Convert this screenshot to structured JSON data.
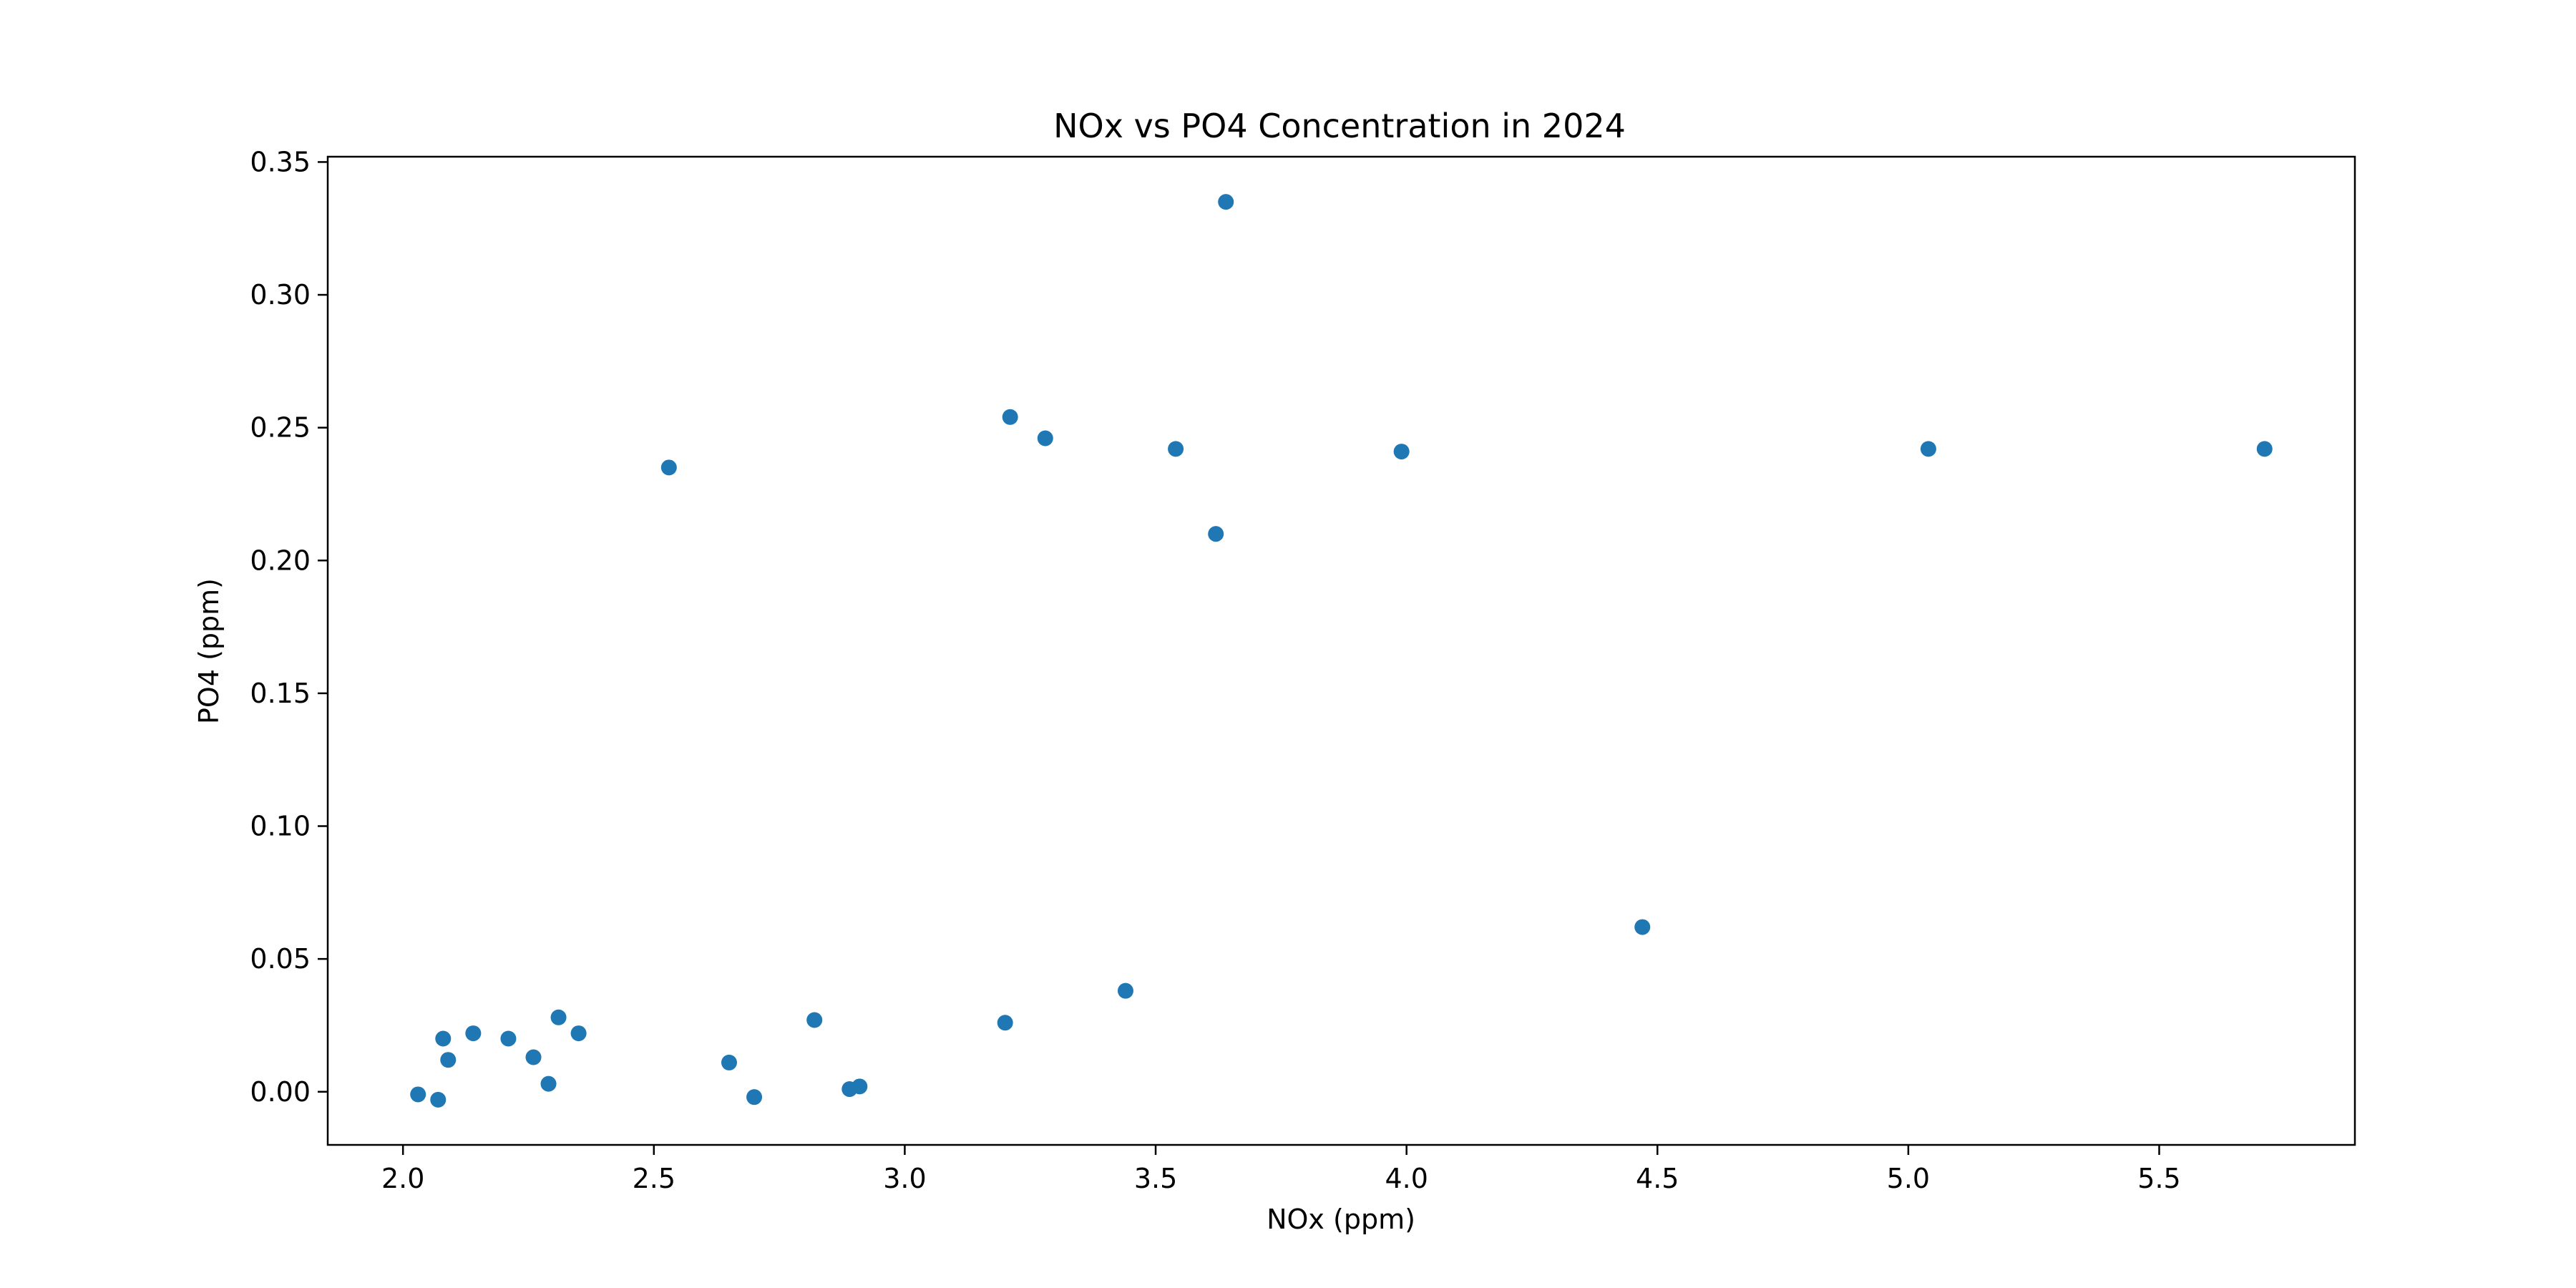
{
  "chart_data": {
    "type": "scatter",
    "title": "NOx vs PO4 Concentration in 2024",
    "xlabel": "NOx (ppm)",
    "ylabel": "PO4 (ppm)",
    "xlim": [
      1.85,
      5.89
    ],
    "ylim": [
      -0.02,
      0.352
    ],
    "xticks": [
      2.0,
      2.5,
      3.0,
      3.5,
      4.0,
      4.5,
      5.0,
      5.5
    ],
    "xtick_labels": [
      "2.0",
      "2.5",
      "3.0",
      "3.5",
      "4.0",
      "4.5",
      "5.0",
      "5.5"
    ],
    "yticks": [
      0.0,
      0.05,
      0.1,
      0.15,
      0.2,
      0.25,
      0.3,
      0.35
    ],
    "ytick_labels": [
      "0.00",
      "0.05",
      "0.10",
      "0.15",
      "0.20",
      "0.25",
      "0.30",
      "0.35"
    ],
    "grid": false,
    "marker_color": "#1f77b4",
    "series": [
      {
        "points": [
          {
            "x": 2.03,
            "y": -0.001
          },
          {
            "x": 2.07,
            "y": -0.003
          },
          {
            "x": 2.08,
            "y": 0.02
          },
          {
            "x": 2.09,
            "y": 0.012
          },
          {
            "x": 2.14,
            "y": 0.022
          },
          {
            "x": 2.21,
            "y": 0.02
          },
          {
            "x": 2.26,
            "y": 0.013
          },
          {
            "x": 2.29,
            "y": 0.003
          },
          {
            "x": 2.31,
            "y": 0.028
          },
          {
            "x": 2.35,
            "y": 0.022
          },
          {
            "x": 2.53,
            "y": 0.235
          },
          {
            "x": 2.65,
            "y": 0.011
          },
          {
            "x": 2.7,
            "y": -0.002
          },
          {
            "x": 2.82,
            "y": 0.027
          },
          {
            "x": 2.89,
            "y": 0.001
          },
          {
            "x": 2.91,
            "y": 0.002
          },
          {
            "x": 3.2,
            "y": 0.026
          },
          {
            "x": 3.21,
            "y": 0.254
          },
          {
            "x": 3.28,
            "y": 0.246
          },
          {
            "x": 3.44,
            "y": 0.038
          },
          {
            "x": 3.54,
            "y": 0.242
          },
          {
            "x": 3.62,
            "y": 0.21
          },
          {
            "x": 3.64,
            "y": 0.335
          },
          {
            "x": 3.99,
            "y": 0.241
          },
          {
            "x": 4.47,
            "y": 0.062
          },
          {
            "x": 5.04,
            "y": 0.242
          },
          {
            "x": 5.71,
            "y": 0.242
          }
        ]
      }
    ]
  }
}
